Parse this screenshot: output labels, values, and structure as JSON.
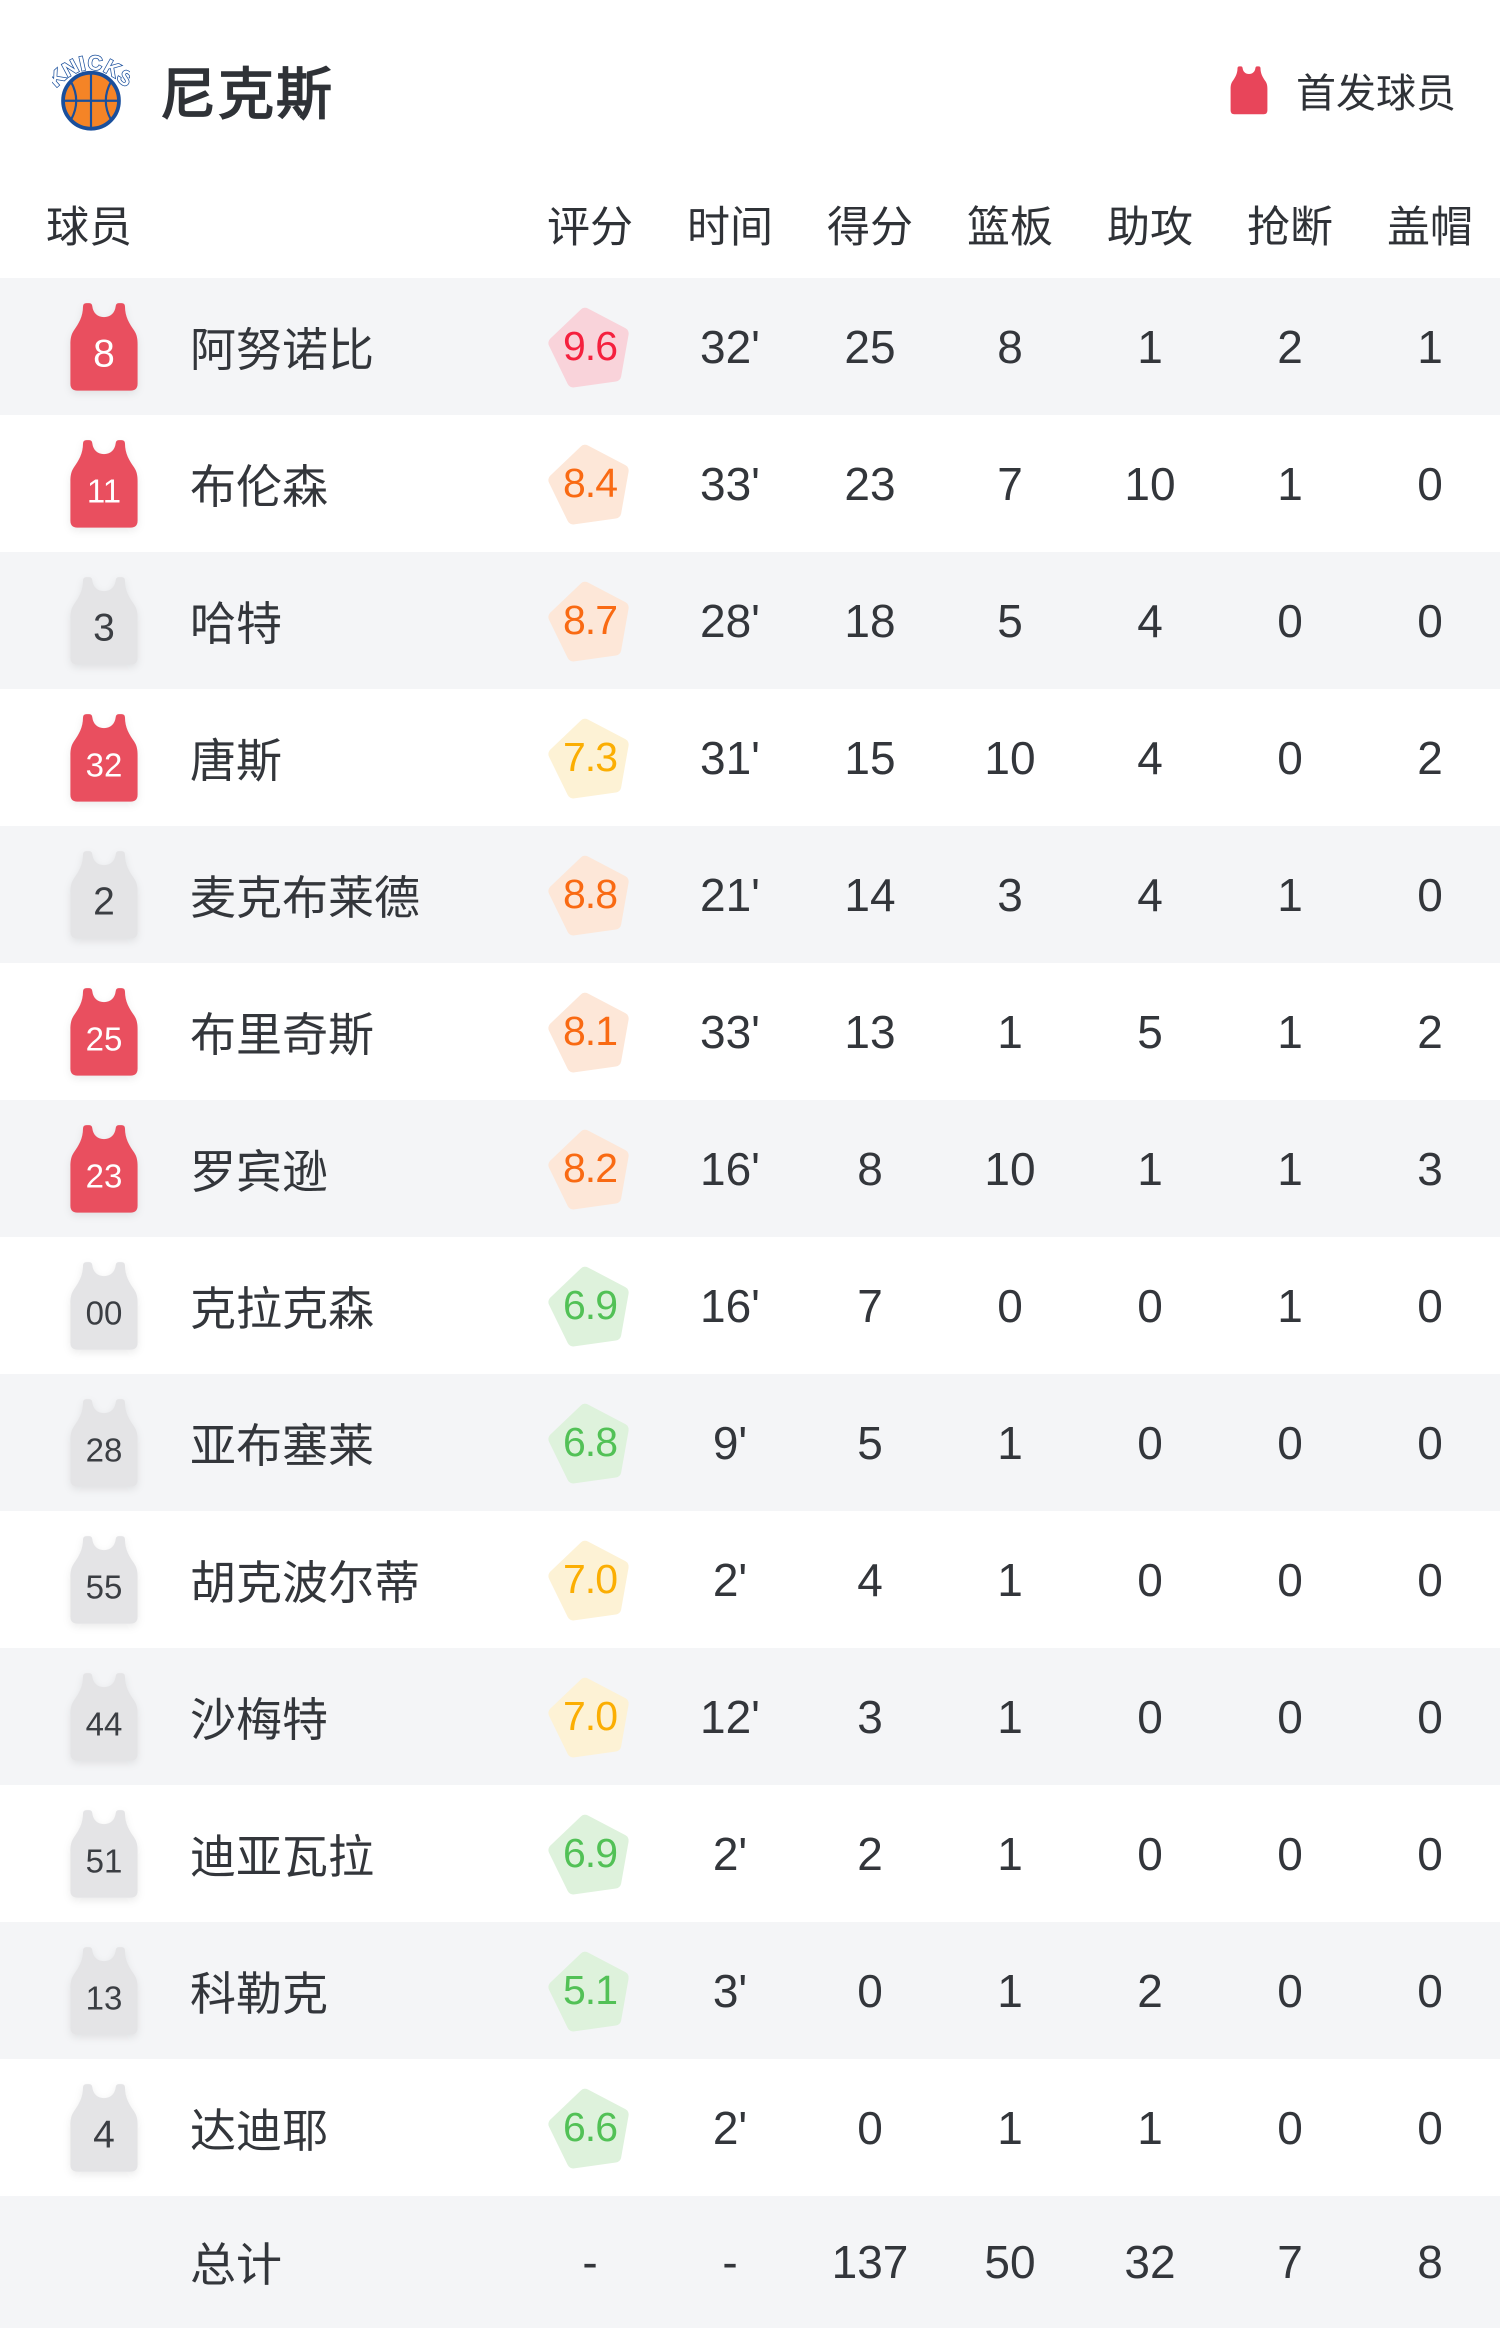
{
  "team_header": {
    "team_name": "尼克斯",
    "logo_text": "KNICKS",
    "legend_label": "首发球员"
  },
  "table": {
    "player_col_header": "球员",
    "stat_col_headers": [
      "评分",
      "时间",
      "得分",
      "篮板",
      "助攻",
      "抢断",
      "盖帽"
    ],
    "players": [
      {
        "number": "8",
        "name": "阿努诺比",
        "starter": true,
        "rating": "9.6",
        "tier": "red",
        "minutes": "32'",
        "points": "25",
        "rebounds": "8",
        "assists": "1",
        "steals": "2",
        "blocks": "1"
      },
      {
        "number": "11",
        "name": "布伦森",
        "starter": true,
        "rating": "8.4",
        "tier": "orange",
        "minutes": "33'",
        "points": "23",
        "rebounds": "7",
        "assists": "10",
        "steals": "1",
        "blocks": "0"
      },
      {
        "number": "3",
        "name": "哈特",
        "starter": false,
        "rating": "8.7",
        "tier": "orange",
        "minutes": "28'",
        "points": "18",
        "rebounds": "5",
        "assists": "4",
        "steals": "0",
        "blocks": "0"
      },
      {
        "number": "32",
        "name": "唐斯",
        "starter": true,
        "rating": "7.3",
        "tier": "amber",
        "minutes": "31'",
        "points": "15",
        "rebounds": "10",
        "assists": "4",
        "steals": "0",
        "blocks": "2"
      },
      {
        "number": "2",
        "name": "麦克布莱德",
        "starter": false,
        "rating": "8.8",
        "tier": "orange",
        "minutes": "21'",
        "points": "14",
        "rebounds": "3",
        "assists": "4",
        "steals": "1",
        "blocks": "0"
      },
      {
        "number": "25",
        "name": "布里奇斯",
        "starter": true,
        "rating": "8.1",
        "tier": "orange",
        "minutes": "33'",
        "points": "13",
        "rebounds": "1",
        "assists": "5",
        "steals": "1",
        "blocks": "2"
      },
      {
        "number": "23",
        "name": "罗宾逊",
        "starter": true,
        "rating": "8.2",
        "tier": "orange",
        "minutes": "16'",
        "points": "8",
        "rebounds": "10",
        "assists": "1",
        "steals": "1",
        "blocks": "3"
      },
      {
        "number": "00",
        "name": "克拉克森",
        "starter": false,
        "rating": "6.9",
        "tier": "green",
        "minutes": "16'",
        "points": "7",
        "rebounds": "0",
        "assists": "0",
        "steals": "1",
        "blocks": "0"
      },
      {
        "number": "28",
        "name": "亚布塞莱",
        "starter": false,
        "rating": "6.8",
        "tier": "green",
        "minutes": "9'",
        "points": "5",
        "rebounds": "1",
        "assists": "0",
        "steals": "0",
        "blocks": "0"
      },
      {
        "number": "55",
        "name": "胡克波尔蒂",
        "starter": false,
        "rating": "7.0",
        "tier": "amber",
        "minutes": "2'",
        "points": "4",
        "rebounds": "1",
        "assists": "0",
        "steals": "0",
        "blocks": "0"
      },
      {
        "number": "44",
        "name": "沙梅特",
        "starter": false,
        "rating": "7.0",
        "tier": "amber",
        "minutes": "12'",
        "points": "3",
        "rebounds": "1",
        "assists": "0",
        "steals": "0",
        "blocks": "0"
      },
      {
        "number": "51",
        "name": "迪亚瓦拉",
        "starter": false,
        "rating": "6.9",
        "tier": "green",
        "minutes": "2'",
        "points": "2",
        "rebounds": "1",
        "assists": "0",
        "steals": "0",
        "blocks": "0"
      },
      {
        "number": "13",
        "name": "科勒克",
        "starter": false,
        "rating": "5.1",
        "tier": "green",
        "minutes": "3'",
        "points": "0",
        "rebounds": "1",
        "assists": "2",
        "steals": "0",
        "blocks": "0"
      },
      {
        "number": "4",
        "name": "达迪耶",
        "starter": false,
        "rating": "6.6",
        "tier": "green",
        "minutes": "2'",
        "points": "0",
        "rebounds": "1",
        "assists": "1",
        "steals": "0",
        "blocks": "0"
      }
    ],
    "total": {
      "label": "总计",
      "rating": "-",
      "minutes": "-",
      "points": "137",
      "rebounds": "50",
      "assists": "32",
      "steals": "7",
      "blocks": "8"
    }
  },
  "colors": {
    "starter_jersey": "#e94f5f",
    "bench_jersey": "#e4e4e6",
    "bench_number": "#3b3e43",
    "starter_number": "#ffffff",
    "legend_jersey": "#e8455a",
    "row_alt_bg": "#f4f5f7",
    "logo_orange": "#f58426",
    "logo_blue": "#1a4f9c",
    "rating_tiers": {
      "red": {
        "text": "#f5203e",
        "bg": "#f9d3da"
      },
      "orange": {
        "text": "#f96a13",
        "bg": "#fde7d8"
      },
      "amber": {
        "text": "#fbae03",
        "bg": "#fdf2d5"
      },
      "green": {
        "text": "#52c156",
        "bg": "#def2dc"
      }
    }
  }
}
